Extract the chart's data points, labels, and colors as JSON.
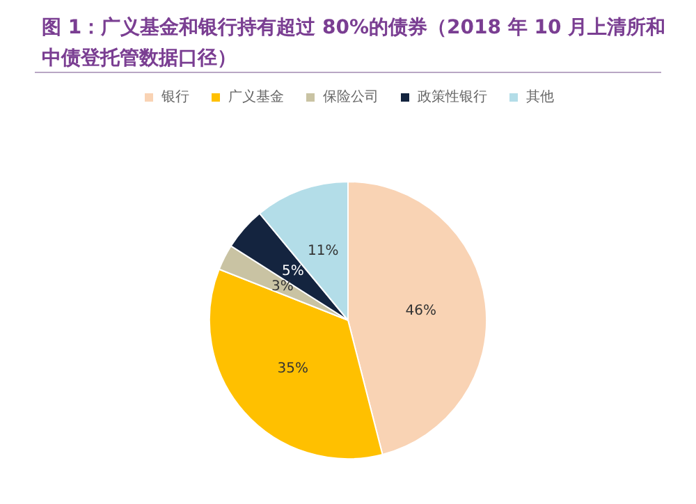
{
  "chart_data": {
    "type": "pie",
    "title": "图 1：广义基金和银行持有超过 80%的债券（2018 年 10 月上清所和中债登托管数据口径）",
    "categories": [
      "银行",
      "广义基金",
      "保险公司",
      "政策性银行",
      "其他"
    ],
    "values": [
      46,
      35,
      3,
      5,
      11
    ],
    "colors": [
      "#f9d3b4",
      "#ffc000",
      "#c9c3a3",
      "#14243f",
      "#b3dde8"
    ],
    "value_labels": [
      "46%",
      "35%",
      "3%",
      "5%",
      "11%"
    ],
    "legend": "top"
  }
}
